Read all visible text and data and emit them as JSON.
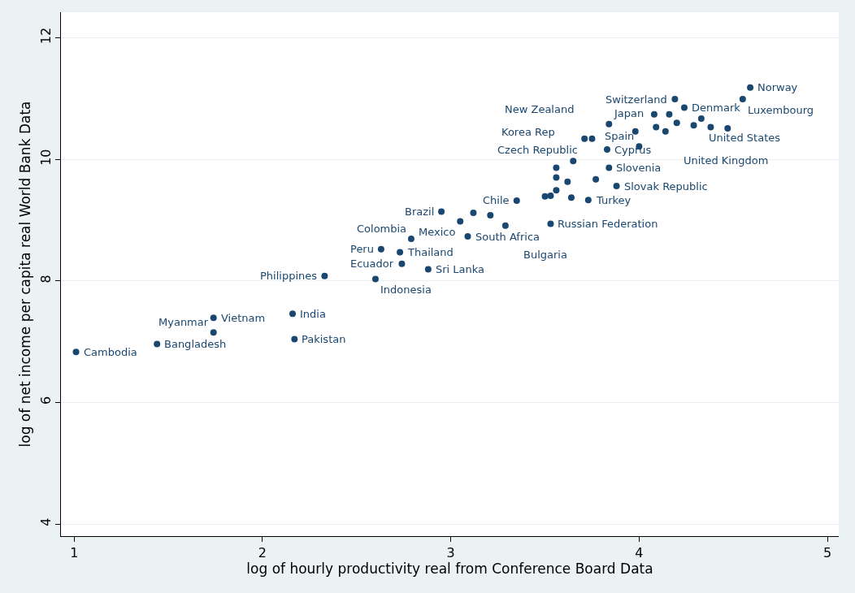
{
  "chart_data": {
    "type": "scatter",
    "xlabel": "log of hourly productivity real from Conference Board Data",
    "ylabel": "log of net income per capita real World Bank Data",
    "series": [
      {
        "color": "#1a476f",
        "x": [
          1.01,
          1.44,
          1.74,
          1.74,
          2.16,
          2.17,
          2.33,
          2.6,
          2.63,
          2.73,
          2.74,
          2.88,
          2.79,
          3.09,
          2.95,
          3.05,
          3.29,
          3.35,
          3.53,
          3.73,
          3.88,
          3.77,
          3.84,
          3.65,
          3.83,
          4.0,
          3.75,
          3.84,
          4.19,
          4.59,
          4.55,
          4.24,
          4.33,
          4.14,
          3.71,
          3.56,
          3.56,
          3.56,
          3.62,
          3.5,
          3.53,
          3.64,
          3.12,
          3.21,
          4.08,
          4.16,
          4.09,
          4.2,
          4.29,
          4.38,
          3.98,
          4.47
        ],
        "values": [
          6.83,
          6.96,
          7.39,
          7.15,
          7.46,
          7.04,
          8.08,
          8.03,
          8.52,
          8.47,
          8.28,
          8.19,
          8.69,
          8.73,
          9.14,
          8.98,
          8.91,
          9.32,
          8.94,
          9.33,
          9.56,
          9.67,
          9.86,
          9.97,
          10.16,
          10.21,
          10.34,
          10.58,
          10.99,
          11.18,
          10.99,
          10.85,
          10.67,
          10.46,
          10.34,
          9.86,
          9.7,
          9.49,
          9.63,
          9.39,
          9.4,
          9.37,
          9.12,
          9.08,
          10.74,
          10.74,
          10.53,
          10.6,
          10.56,
          10.53,
          10.46,
          10.51
        ]
      }
    ],
    "annotations": [
      {
        "text": "Cambodia",
        "x": 1.01,
        "y": 6.83
      },
      {
        "text": "Bangladesh",
        "x": 1.44,
        "y": 6.96
      },
      {
        "text": "Vietnam",
        "x": 1.74,
        "y": 7.39
      },
      {
        "text": "Myanmar",
        "x": 1.74,
        "y": 7.15
      },
      {
        "text": "India",
        "x": 2.16,
        "y": 7.46
      },
      {
        "text": "Pakistan",
        "x": 2.17,
        "y": 7.04
      },
      {
        "text": "Philippines",
        "x": 2.33,
        "y": 8.08
      },
      {
        "text": "Indonesia",
        "x": 2.6,
        "y": 8.03
      },
      {
        "text": "Peru",
        "x": 2.63,
        "y": 8.52
      },
      {
        "text": "Thailand",
        "x": 2.73,
        "y": 8.47
      },
      {
        "text": "Ecuador",
        "x": 2.74,
        "y": 8.28
      },
      {
        "text": "Sri Lanka",
        "x": 2.88,
        "y": 8.19
      },
      {
        "text": "Colombia",
        "x": 2.79,
        "y": 8.69
      },
      {
        "text": "South Africa",
        "x": 3.09,
        "y": 8.73
      },
      {
        "text": "Brazil",
        "x": 2.95,
        "y": 9.14
      },
      {
        "text": "Mexico",
        "x": 3.05,
        "y": 8.98
      },
      {
        "text": "Bulgaria",
        "x": 3.29,
        "y": 8.91
      },
      {
        "text": "Chile",
        "x": 3.35,
        "y": 9.32
      },
      {
        "text": "Russian Federation",
        "x": 3.53,
        "y": 8.94
      },
      {
        "text": "Turkey",
        "x": 3.73,
        "y": 9.33
      },
      {
        "text": "Slovak Republic",
        "x": 3.88,
        "y": 9.56
      },
      {
        "text": "Czech Republic",
        "x": 3.77,
        "y": 9.67
      },
      {
        "text": "Slovenia",
        "x": 3.84,
        "y": 9.86
      },
      {
        "text": "Korea Rep",
        "x": 3.65,
        "y": 9.97
      },
      {
        "text": "Cyprus",
        "x": 3.83,
        "y": 10.16
      },
      {
        "text": "Spain",
        "x": 4.0,
        "y": 10.21
      },
      {
        "text": "New Zealand",
        "x": 3.75,
        "y": 10.34
      },
      {
        "text": "Japan",
        "x": 3.84,
        "y": 10.58
      },
      {
        "text": "Switzerland",
        "x": 4.19,
        "y": 10.99
      },
      {
        "text": "Norway",
        "x": 4.59,
        "y": 11.18
      },
      {
        "text": "Luxembourg",
        "x": 4.55,
        "y": 10.99
      },
      {
        "text": "Denmark",
        "x": 4.24,
        "y": 10.85
      },
      {
        "text": "United States",
        "x": 4.33,
        "y": 10.67
      },
      {
        "text": "United Kingdom",
        "x": 4.14,
        "y": 10.46
      }
    ],
    "xlim": [
      0.93,
      5.06
    ],
    "ylim": [
      3.8,
      12.42
    ],
    "xticks": [
      1,
      2,
      3,
      4,
      5
    ],
    "yticks": [
      4,
      6,
      8,
      10,
      12
    ],
    "grid": "y",
    "marker": "circle"
  }
}
